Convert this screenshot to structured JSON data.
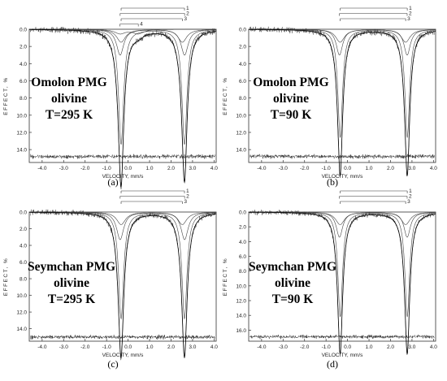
{
  "chart_data": [
    {
      "type": "line",
      "caption": "(a)",
      "label_lines": [
        "Omolon PMG",
        "olivine",
        "T=295 K"
      ],
      "xlabel": "VELOCITY, mm/s",
      "ylabel": "EFFECT, %",
      "xlim": [
        -4.6,
        4.1
      ],
      "ylim": [
        0,
        15.5
      ],
      "y_inverted": true,
      "x_ticks": [
        "-4.0",
        "-3.0",
        "-2.0",
        "-1.0",
        "0.0",
        "1.0",
        "2.0",
        "3.0",
        "4.0"
      ],
      "y_ticks": [
        "0.0",
        "2.0",
        "4.0",
        "6.0",
        "8.0",
        "10.0",
        "12.0",
        "14.0"
      ],
      "components": [
        {
          "name": "1",
          "center_shift": 1.15,
          "splitting": 2.95,
          "width": 0.14,
          "depth": 13.4
        },
        {
          "name": "2",
          "center_shift": 1.13,
          "splitting": 3.0,
          "width": 0.2,
          "depth": 3.0
        },
        {
          "name": "3",
          "center_shift": 1.1,
          "splitting": 2.85,
          "width": 0.25,
          "depth": 1.5
        },
        {
          "name": "4",
          "center_shift": 0.05,
          "splitting": 0.85,
          "width": 0.3,
          "depth": 0.5
        }
      ],
      "residual_baseline": 14.8
    },
    {
      "type": "line",
      "caption": "(b)",
      "label_lines": [
        "Omolon PMG",
        "olivine",
        "T=90 K"
      ],
      "xlabel": "VELOCITY, mm/s",
      "ylabel": "EFFECT, %",
      "xlim": [
        -4.6,
        4.1
      ],
      "ylim": [
        0,
        15.5
      ],
      "y_inverted": true,
      "x_ticks": [
        "-4.0",
        "-3.0",
        "-2.0",
        "-1.0",
        "0.0",
        "1.0",
        "2.0",
        "3.0",
        "4.0"
      ],
      "y_ticks": [
        "0.0",
        "2.0",
        "4.0",
        "6.0",
        "8.0",
        "10.0",
        "12.0",
        "14.0"
      ],
      "components": [
        {
          "name": "1",
          "center_shift": 1.22,
          "splitting": 3.12,
          "width": 0.13,
          "depth": 12.6
        },
        {
          "name": "2",
          "center_shift": 1.2,
          "splitting": 3.15,
          "width": 0.18,
          "depth": 3.0
        },
        {
          "name": "3",
          "center_shift": 1.18,
          "splitting": 3.05,
          "width": 0.25,
          "depth": 1.5
        }
      ],
      "residual_baseline": 14.8
    },
    {
      "type": "line",
      "caption": "(c)",
      "label_lines": [
        "Seymchan PMG",
        "olivine",
        "T=295 K"
      ],
      "xlabel": "VELOCITY, mm/s",
      "ylabel": "EFFECT, %",
      "xlim": [
        -4.6,
        4.1
      ],
      "ylim": [
        0,
        15.5
      ],
      "y_inverted": true,
      "x_ticks": [
        "-4.0",
        "-3.0",
        "-2.0",
        "-1.0",
        "0.0",
        "1.0",
        "2.0",
        "3.0",
        "4.0"
      ],
      "y_ticks": [
        "0.0",
        "2.0",
        "4.0",
        "6.0",
        "8.0",
        "10.0",
        "12.0",
        "14.0"
      ],
      "components": [
        {
          "name": "1",
          "center_shift": 1.15,
          "splitting": 2.95,
          "width": 0.14,
          "depth": 12.8
        },
        {
          "name": "2",
          "center_shift": 1.13,
          "splitting": 3.0,
          "width": 0.2,
          "depth": 3.3
        },
        {
          "name": "3",
          "center_shift": 1.1,
          "splitting": 2.85,
          "width": 0.25,
          "depth": 1.5
        }
      ],
      "residual_baseline": 15.0
    },
    {
      "type": "line",
      "caption": "(d)",
      "label_lines": [
        "Seymchan PMG",
        "olivine",
        "T=90 K"
      ],
      "xlabel": "VELOCITY, mm/s",
      "ylabel": "EFFECT, %",
      "xlim": [
        -4.6,
        4.1
      ],
      "ylim": [
        0,
        17.5
      ],
      "y_inverted": true,
      "x_ticks": [
        "-4.0",
        "-3.0",
        "-2.0",
        "-1.0",
        "0.0",
        "1.0",
        "2.0",
        "3.0",
        "4.0"
      ],
      "y_ticks": [
        "0.0",
        "2.0",
        "4.0",
        "6.0",
        "8.0",
        "10.0",
        "12.0",
        "14.0",
        "16.0"
      ],
      "components": [
        {
          "name": "1",
          "center_shift": 1.22,
          "splitting": 3.12,
          "width": 0.13,
          "depth": 14.2
        },
        {
          "name": "2",
          "center_shift": 1.2,
          "splitting": 3.15,
          "width": 0.18,
          "depth": 3.4
        },
        {
          "name": "3",
          "center_shift": 1.18,
          "splitting": 3.05,
          "width": 0.25,
          "depth": 1.7
        }
      ],
      "residual_baseline": 16.9
    }
  ]
}
